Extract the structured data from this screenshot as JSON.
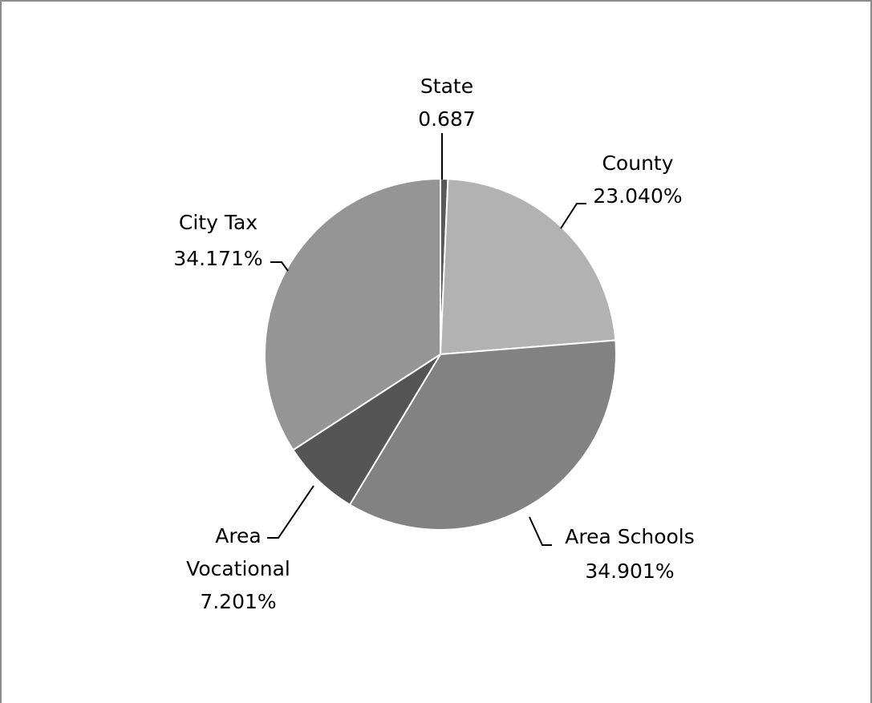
{
  "chart_data": {
    "type": "pie",
    "title": "",
    "slices": [
      {
        "name": "State",
        "value": 0.687,
        "label": "0.687",
        "color": "#5a5a5a"
      },
      {
        "name": "County",
        "value": 23.04,
        "label": "23.040%",
        "color": "#b2b2b2"
      },
      {
        "name": "Area Schools",
        "value": 34.901,
        "label": "34.901%",
        "color": "#828282"
      },
      {
        "name": "Area Vocational",
        "value": 7.201,
        "label": "7.201%",
        "color": "#555555"
      },
      {
        "name": "City Tax",
        "value": 34.171,
        "label": "34.171%",
        "color": "#959595"
      }
    ],
    "legend": "none"
  },
  "labels": {
    "state": {
      "line1": "State",
      "line2": "0.687"
    },
    "county": {
      "line1": "County",
      "line2": "23.040%"
    },
    "area_schools": {
      "line1": "Area Schools",
      "line2": "34.901%"
    },
    "area_vocational": {
      "line1": "Area",
      "line2": "Vocational",
      "line3": "7.201%"
    },
    "city_tax": {
      "line1": "City Tax",
      "line2": "34.171%"
    }
  }
}
